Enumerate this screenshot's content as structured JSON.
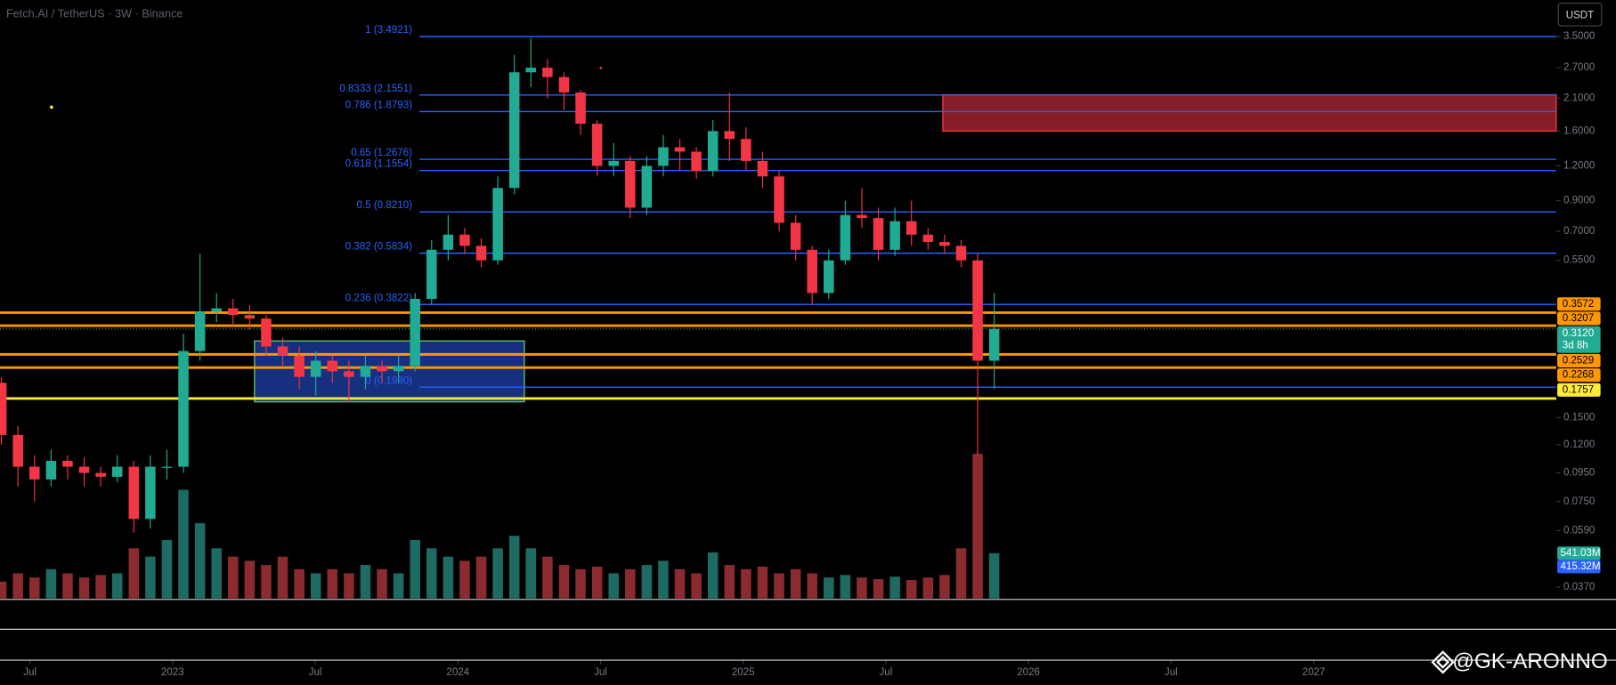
{
  "chart_data": {
    "type": "candlestick",
    "title": "Fetch.AI / TetherUS · 3W · Binance",
    "currency": "USDT",
    "watermark": "@GK-ARONNO",
    "up_color": "#22ab94",
    "down_color": "#f23645",
    "log": true,
    "ylim": [
      0.0337,
      4.72
    ],
    "yticks": [
      {
        "value": 3.5,
        "label": "3.5000"
      },
      {
        "value": 2.7,
        "label": "2.7000"
      },
      {
        "value": 2.1,
        "label": "2.1000"
      },
      {
        "value": 1.6,
        "label": "1.6000"
      },
      {
        "value": 1.2,
        "label": "1.2000"
      },
      {
        "value": 0.9,
        "label": "0.9000"
      },
      {
        "value": 0.7,
        "label": "0.7000"
      },
      {
        "value": 0.55,
        "label": "0.5500"
      },
      {
        "value": 0.15,
        "label": "0.1500"
      },
      {
        "value": 0.12,
        "label": "0.1200"
      },
      {
        "value": 0.095,
        "label": "0.0950"
      },
      {
        "value": 0.075,
        "label": "0.0750"
      },
      {
        "value": 0.059,
        "label": "0.0590"
      },
      {
        "value": 0.037,
        "label": "0.0370"
      }
    ],
    "xlim": [
      2022.395,
      2027.85
    ],
    "xticks": [
      {
        "value": 2022.5,
        "label": "Jul"
      },
      2023,
      {
        "value": 2023.5,
        "label": "Jul"
      },
      2024,
      {
        "value": 2024.5,
        "label": "Jul"
      },
      2025,
      {
        "value": 2025.5,
        "label": "Jul"
      },
      2026,
      {
        "value": 2026.5,
        "label": "Jul"
      },
      2027
    ],
    "x": [
      2022.4,
      2022.458,
      2022.516,
      2022.574,
      2022.632,
      2022.69,
      2022.748,
      2022.806,
      2022.864,
      2022.922,
      2022.98,
      2023.038,
      2023.096,
      2023.154,
      2023.212,
      2023.27,
      2023.328,
      2023.386,
      2023.444,
      2023.502,
      2023.56,
      2023.618,
      2023.676,
      2023.734,
      2023.792,
      2023.85,
      2023.908,
      2023.966,
      2024.024,
      2024.082,
      2024.14,
      2024.198,
      2024.256,
      2024.314,
      2024.372,
      2024.43,
      2024.488,
      2024.546,
      2024.604,
      2024.662,
      2024.72,
      2024.778,
      2024.836,
      2024.894,
      2024.952,
      2025.01,
      2025.068,
      2025.126,
      2025.184,
      2025.242,
      2025.3,
      2025.358,
      2025.416,
      2025.474,
      2025.532,
      2025.59,
      2025.648,
      2025.706,
      2025.764,
      2025.822,
      2025.88
    ],
    "open": [
      0.2,
      0.13,
      0.1,
      0.09,
      0.105,
      0.1,
      0.095,
      0.092,
      0.1,
      0.065,
      0.1,
      0.1,
      0.26,
      0.36,
      0.37,
      0.35,
      0.34,
      0.27,
      0.25,
      0.21,
      0.24,
      0.22,
      0.21,
      0.23,
      0.22,
      0.23,
      0.4,
      0.6,
      0.68,
      0.62,
      0.55,
      1.0,
      2.6,
      2.7,
      2.5,
      2.2,
      1.7,
      1.2,
      1.25,
      0.85,
      1.2,
      1.4,
      1.35,
      1.15,
      1.6,
      1.5,
      1.25,
      1.1,
      0.75,
      0.6,
      0.42,
      0.55,
      0.8,
      0.78,
      0.6,
      0.76,
      0.68,
      0.64,
      0.62,
      0.55,
      0.24
    ],
    "high": [
      0.21,
      0.14,
      0.11,
      0.115,
      0.11,
      0.108,
      0.1,
      0.11,
      0.105,
      0.11,
      0.115,
      0.3,
      0.58,
      0.42,
      0.4,
      0.38,
      0.35,
      0.29,
      0.27,
      0.26,
      0.25,
      0.24,
      0.25,
      0.24,
      0.25,
      0.42,
      0.65,
      0.8,
      0.72,
      0.66,
      1.1,
      3.0,
      3.45,
      2.9,
      2.6,
      2.25,
      1.75,
      1.45,
      1.3,
      1.3,
      1.55,
      1.5,
      1.4,
      1.75,
      2.2,
      1.65,
      1.35,
      1.15,
      0.8,
      0.62,
      0.6,
      0.9,
      1.0,
      0.85,
      0.85,
      0.9,
      0.72,
      0.68,
      0.65,
      0.58,
      0.42
    ],
    "low": [
      0.12,
      0.085,
      0.075,
      0.085,
      0.09,
      0.085,
      0.085,
      0.088,
      0.058,
      0.06,
      0.09,
      0.095,
      0.24,
      0.33,
      0.32,
      0.31,
      0.25,
      0.23,
      0.19,
      0.18,
      0.2,
      0.17,
      0.19,
      0.2,
      0.2,
      0.22,
      0.38,
      0.55,
      0.58,
      0.52,
      0.53,
      0.95,
      2.3,
      2.1,
      1.9,
      1.55,
      1.1,
      1.1,
      0.78,
      0.8,
      1.1,
      1.15,
      1.08,
      1.1,
      1.25,
      1.15,
      1.0,
      0.7,
      0.55,
      0.38,
      0.4,
      0.53,
      0.72,
      0.55,
      0.57,
      0.62,
      0.6,
      0.58,
      0.52,
      0.11,
      0.19
    ],
    "close": [
      0.13,
      0.1,
      0.09,
      0.105,
      0.1,
      0.095,
      0.092,
      0.1,
      0.065,
      0.1,
      0.1,
      0.26,
      0.36,
      0.37,
      0.35,
      0.34,
      0.27,
      0.25,
      0.21,
      0.24,
      0.22,
      0.21,
      0.23,
      0.22,
      0.23,
      0.4,
      0.6,
      0.68,
      0.62,
      0.55,
      1.0,
      2.6,
      2.7,
      2.5,
      2.2,
      1.7,
      1.2,
      1.25,
      0.85,
      1.2,
      1.4,
      1.35,
      1.15,
      1.6,
      1.5,
      1.25,
      1.1,
      0.75,
      0.6,
      0.42,
      0.55,
      0.8,
      0.78,
      0.6,
      0.76,
      0.68,
      0.64,
      0.62,
      0.55,
      0.24,
      0.312
    ],
    "volume": {
      "ylim": [
        0,
        1800
      ],
      "up_color": "#1d6b62",
      "down_color": "#8b2b30",
      "values": [
        200,
        300,
        250,
        350,
        300,
        250,
        280,
        300,
        600,
        500,
        700,
        1300,
        900,
        600,
        500,
        450,
        400,
        500,
        350,
        300,
        350,
        300,
        400,
        350,
        300,
        700,
        600,
        500,
        450,
        500,
        600,
        750,
        600,
        500,
        400,
        350,
        380,
        300,
        350,
        400,
        450,
        350,
        300,
        550,
        400,
        350,
        380,
        300,
        350,
        300,
        250,
        280,
        250,
        230,
        260,
        220,
        250,
        280,
        600,
        1730,
        541.03
      ],
      "value_labels": [
        null,
        null,
        null,
        null,
        null,
        null,
        null,
        null,
        null,
        null,
        null,
        null,
        null,
        null,
        null,
        null,
        null,
        null,
        null,
        null,
        null,
        null,
        null,
        null,
        null,
        null,
        null,
        null,
        null,
        null,
        null,
        null,
        null,
        null,
        null,
        null,
        null,
        null,
        null,
        null,
        null,
        null,
        null,
        null,
        null,
        null,
        null,
        null,
        null,
        null,
        null,
        null,
        null,
        null,
        null,
        null,
        null,
        null,
        null,
        null,
        "541.03M"
      ]
    },
    "volume_ma": {
      "value": 415.32,
      "label": "415.32M",
      "color": "#2962ff"
    },
    "fib_color": "#2962ff",
    "fib_levels": [
      {
        "label": "1 (3.4921)",
        "value": 3.4921
      },
      {
        "label": "0.8333 (2.1551)",
        "value": 2.1551
      },
      {
        "label": "0.786 (1.8793)",
        "value": 1.8793
      },
      {
        "label": "0.65 (1.2676)",
        "value": 1.2676
      },
      {
        "label": "0.618 (1.1554)",
        "value": 1.1554
      },
      {
        "label": "0.5 (0.8210)",
        "value": 0.821
      },
      {
        "label": "0.382 (0.5834)",
        "value": 0.5834
      },
      {
        "label": "0.236 (0.3822)",
        "value": 0.3822
      },
      {
        "label": "0 (0.1930)",
        "value": 0.193
      }
    ],
    "price_lines": [
      {
        "value": 0.3572,
        "label": "0.3572",
        "color": "#ff9800"
      },
      {
        "value": 0.3207,
        "label": "0.3207",
        "color": "#ff9800"
      },
      {
        "value": 0.2529,
        "label": "0.2529",
        "color": "#ff9800"
      },
      {
        "value": 0.2268,
        "label": "0.2268",
        "color": "#ff9800"
      },
      {
        "value": 0.1757,
        "label": "0.1757",
        "color": "#ffeb3b"
      }
    ],
    "current_price": {
      "value": 0.312,
      "label": "0.3120",
      "countdown": "3d 8h",
      "color": "#22ab94"
    },
    "zones": [
      {
        "x": [
          2025.7,
          2027.85
        ],
        "y": [
          1.6,
          2.16
        ],
        "color": "#b22833",
        "edge": "#f23645"
      },
      {
        "x": [
          2023.287,
          2024.233
        ],
        "y": [
          0.171,
          0.2825
        ],
        "color": "#1e3fa8",
        "edge": "#66bb6a"
      }
    ]
  }
}
